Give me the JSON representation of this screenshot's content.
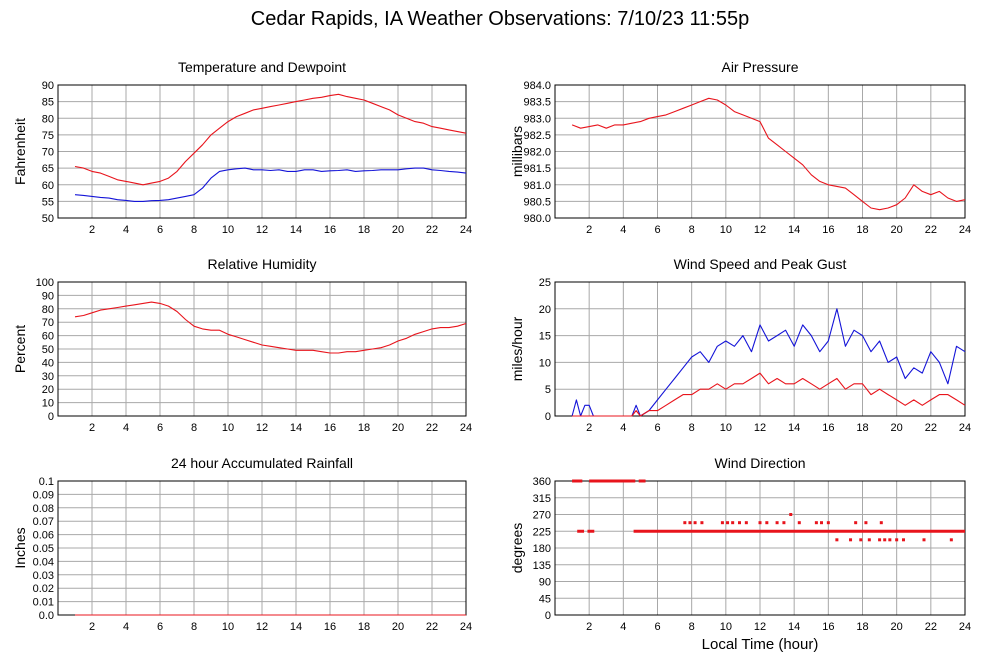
{
  "page": {
    "title": "Cedar Rapids, IA Weather Observations: 7/10/23 11:55p",
    "xlabel": "Local Time (hour)"
  },
  "colors": {
    "primary": "#e8141c",
    "secondary": "#1414d8",
    "grid": "#a8a8a8",
    "axis": "#000000"
  },
  "chart_data": [
    {
      "id": "temperature",
      "type": "line",
      "title": "Temperature and Dewpoint",
      "ylabel": "Fahrenheit",
      "xlim": [
        0,
        24
      ],
      "ylim": [
        50,
        90
      ],
      "xticks": [
        2,
        4,
        6,
        8,
        10,
        12,
        14,
        16,
        18,
        20,
        22,
        24
      ],
      "yticks": [
        50,
        55,
        60,
        65,
        70,
        75,
        80,
        85,
        90
      ],
      "grid": true,
      "series": [
        {
          "color": "#e8141c",
          "x": [
            1,
            1.5,
            2,
            2.5,
            3,
            3.5,
            4,
            4.5,
            5,
            5.5,
            6,
            6.5,
            7,
            7.5,
            8,
            8.5,
            9,
            9.5,
            10,
            10.5,
            11,
            11.5,
            12,
            12.5,
            13,
            13.5,
            14,
            14.5,
            15,
            15.5,
            16,
            16.5,
            17,
            17.5,
            18,
            18.5,
            19,
            19.5,
            20,
            20.5,
            21,
            21.5,
            22,
            22.5,
            23,
            23.5,
            24
          ],
          "y": [
            65.5,
            65,
            64,
            63.5,
            62.5,
            61.5,
            61,
            60.5,
            60,
            60.5,
            61,
            62,
            64,
            67,
            69.5,
            72,
            75,
            77,
            79,
            80.5,
            81.5,
            82.5,
            83,
            83.5,
            84,
            84.5,
            85,
            85.5,
            86,
            86.3,
            86.8,
            87.2,
            86.5,
            86,
            85.5,
            84.5,
            83.5,
            82.5,
            81,
            80,
            79,
            78.5,
            77.5,
            77,
            76.5,
            76,
            75.5
          ]
        },
        {
          "color": "#1414d8",
          "x": [
            1,
            1.5,
            2,
            2.5,
            3,
            3.5,
            4,
            4.5,
            5,
            5.5,
            6,
            6.5,
            7,
            7.5,
            8,
            8.5,
            9,
            9.5,
            10,
            10.5,
            11,
            11.5,
            12,
            12.5,
            13,
            13.5,
            14,
            14.5,
            15,
            15.5,
            16,
            16.5,
            17,
            17.5,
            18,
            18.5,
            19,
            19.5,
            20,
            20.5,
            21,
            21.5,
            22,
            22.5,
            23,
            23.5,
            24
          ],
          "y": [
            57,
            56.8,
            56.5,
            56.2,
            56,
            55.5,
            55.3,
            55,
            55,
            55.2,
            55.3,
            55.5,
            56,
            56.5,
            57,
            59,
            62,
            64,
            64.5,
            64.8,
            65,
            64.5,
            64.5,
            64.3,
            64.5,
            64,
            64,
            64.5,
            64.5,
            64,
            64.2,
            64.3,
            64.5,
            64,
            64.2,
            64.3,
            64.5,
            64.5,
            64.5,
            64.8,
            65,
            65,
            64.5,
            64.3,
            64,
            63.8,
            63.5
          ]
        }
      ]
    },
    {
      "id": "pressure",
      "type": "line",
      "title": "Air Pressure",
      "ylabel": "millibars",
      "xlim": [
        0,
        24
      ],
      "ylim": [
        980.0,
        984.0
      ],
      "xticks": [
        2,
        4,
        6,
        8,
        10,
        12,
        14,
        16,
        18,
        20,
        22,
        24
      ],
      "yticks": [
        980.0,
        980.5,
        981.0,
        981.5,
        982.0,
        982.5,
        983.0,
        983.5,
        984.0
      ],
      "grid": true,
      "series": [
        {
          "color": "#e8141c",
          "x": [
            1,
            1.5,
            2,
            2.5,
            3,
            3.5,
            4,
            4.5,
            5,
            5.5,
            6,
            6.5,
            7,
            7.5,
            8,
            8.5,
            9,
            9.5,
            10,
            10.5,
            11,
            11.5,
            12,
            12.5,
            13,
            13.5,
            14,
            14.5,
            15,
            15.5,
            16,
            16.5,
            17,
            17.5,
            18,
            18.5,
            19,
            19.5,
            20,
            20.5,
            21,
            21.5,
            22,
            22.5,
            23,
            23.5,
            24
          ],
          "y": [
            982.8,
            982.7,
            982.75,
            982.8,
            982.7,
            982.8,
            982.8,
            982.85,
            982.9,
            983.0,
            983.05,
            983.1,
            983.2,
            983.3,
            983.4,
            983.5,
            983.6,
            983.55,
            983.4,
            983.2,
            983.1,
            983.0,
            982.9,
            982.4,
            982.2,
            982.0,
            981.8,
            981.6,
            981.3,
            981.1,
            981.0,
            980.95,
            980.9,
            980.7,
            980.5,
            980.3,
            980.25,
            980.3,
            980.4,
            980.6,
            981.0,
            980.8,
            980.7,
            980.8,
            980.6,
            980.5,
            980.55
          ]
        }
      ]
    },
    {
      "id": "humidity",
      "type": "line",
      "title": "Relative Humidity",
      "ylabel": "Percent",
      "xlim": [
        0,
        24
      ],
      "ylim": [
        0,
        100
      ],
      "xticks": [
        2,
        4,
        6,
        8,
        10,
        12,
        14,
        16,
        18,
        20,
        22,
        24
      ],
      "yticks": [
        0,
        10,
        20,
        30,
        40,
        50,
        60,
        70,
        80,
        90,
        100
      ],
      "grid": true,
      "series": [
        {
          "color": "#e8141c",
          "x": [
            1,
            1.5,
            2,
            2.5,
            3,
            3.5,
            4,
            4.5,
            5,
            5.5,
            6,
            6.5,
            7,
            7.5,
            8,
            8.5,
            9,
            9.5,
            10,
            10.5,
            11,
            11.5,
            12,
            12.5,
            13,
            13.5,
            14,
            14.5,
            15,
            15.5,
            16,
            16.5,
            17,
            17.5,
            18,
            18.5,
            19,
            19.5,
            20,
            20.5,
            21,
            21.5,
            22,
            22.5,
            23,
            23.5,
            24
          ],
          "y": [
            74,
            75,
            77,
            79,
            80,
            81,
            82,
            83,
            84,
            85,
            84,
            82,
            78,
            72,
            67,
            65,
            64,
            64,
            61,
            59,
            57,
            55,
            53,
            52,
            51,
            50,
            49,
            49,
            49,
            48,
            47,
            47,
            48,
            48,
            49,
            50,
            51,
            53,
            56,
            58,
            61,
            63,
            65,
            66,
            66,
            67,
            69
          ]
        }
      ]
    },
    {
      "id": "wind-speed",
      "type": "line",
      "title": "Wind Speed and Peak Gust",
      "ylabel": "miles/hour",
      "xlim": [
        0,
        24
      ],
      "ylim": [
        0,
        25
      ],
      "xticks": [
        2,
        4,
        6,
        8,
        10,
        12,
        14,
        16,
        18,
        20,
        22,
        24
      ],
      "yticks": [
        0,
        5,
        10,
        15,
        20,
        25
      ],
      "grid": true,
      "series": [
        {
          "color": "#1414d8",
          "x": [
            1,
            1.25,
            1.5,
            1.75,
            2,
            2.25,
            2.5,
            3,
            4,
            4.5,
            4.75,
            5,
            5.5,
            6,
            6.5,
            7,
            7.5,
            8,
            8.5,
            9,
            9.5,
            10,
            10.5,
            11,
            11.5,
            12,
            12.5,
            13,
            13.5,
            14,
            14.5,
            15,
            15.5,
            16,
            16.5,
            17,
            17.5,
            18,
            18.5,
            19,
            19.5,
            20,
            20.5,
            21,
            21.5,
            22,
            22.5,
            23,
            23.5,
            24
          ],
          "y": [
            0,
            3,
            0,
            2,
            2,
            0,
            0,
            0,
            0,
            0,
            2,
            0,
            1,
            3,
            5,
            7,
            9,
            11,
            12,
            10,
            13,
            14,
            13,
            15,
            12,
            17,
            14,
            15,
            16,
            13,
            17,
            15,
            12,
            14,
            20,
            13,
            16,
            15,
            12,
            14,
            10,
            11,
            7,
            9,
            8,
            12,
            10,
            6,
            13,
            12
          ]
        },
        {
          "color": "#e8141c",
          "x": [
            1,
            2,
            3,
            4,
            4.5,
            4.75,
            5,
            5.5,
            6,
            6.5,
            7,
            7.5,
            8,
            8.5,
            9,
            9.5,
            10,
            10.5,
            11,
            11.5,
            12,
            12.5,
            13,
            13.5,
            14,
            14.5,
            15,
            15.5,
            16,
            16.5,
            17,
            17.5,
            18,
            18.5,
            19,
            19.5,
            20,
            20.5,
            21,
            21.5,
            22,
            22.5,
            23,
            23.5,
            24
          ],
          "y": [
            0,
            0,
            0,
            0,
            0,
            1,
            0,
            1,
            1,
            2,
            3,
            4,
            4,
            5,
            5,
            6,
            5,
            6,
            6,
            7,
            8,
            6,
            7,
            6,
            6,
            7,
            6,
            5,
            6,
            7,
            5,
            6,
            6,
            4,
            5,
            4,
            3,
            2,
            3,
            2,
            3,
            4,
            4,
            3,
            2
          ]
        }
      ]
    },
    {
      "id": "rainfall",
      "type": "line",
      "title": "24 hour Accumulated Rainfall",
      "ylabel": "Inches",
      "xlim": [
        0,
        24
      ],
      "ylim": [
        0,
        0.1
      ],
      "xticks": [
        2,
        4,
        6,
        8,
        10,
        12,
        14,
        16,
        18,
        20,
        22,
        24
      ],
      "yticks": [
        0.0,
        0.01,
        0.02,
        0.03,
        0.04,
        0.05,
        0.06,
        0.07,
        0.08,
        0.09,
        0.1
      ],
      "ytick_labels": [
        "0.0",
        "0.01",
        "0.02",
        "0.03",
        "0.04",
        "0.05",
        "0.06",
        "0.07",
        "0.08",
        "0.09",
        "0.1"
      ],
      "grid": true,
      "series": [
        {
          "color": "#e8141c",
          "x": [
            1,
            24
          ],
          "y": [
            0,
            0
          ]
        }
      ]
    },
    {
      "id": "wind-direction",
      "type": "scatter",
      "title": "Wind Direction",
      "ylabel": "degrees",
      "xlim": [
        0,
        24
      ],
      "ylim": [
        0,
        360
      ],
      "xticks": [
        2,
        4,
        6,
        8,
        10,
        12,
        14,
        16,
        18,
        20,
        22,
        24
      ],
      "yticks": [
        0,
        45,
        90,
        135,
        180,
        225,
        270,
        315,
        360
      ],
      "grid": true,
      "series": [
        {
          "color": "#e8141c",
          "segments": [
            {
              "x0": 1.0,
              "x1": 1.6,
              "y": 360
            },
            {
              "x0": 1.3,
              "x1": 1.7,
              "y": 225
            },
            {
              "x0": 1.9,
              "x1": 2.3,
              "y": 225
            },
            {
              "x0": 2.0,
              "x1": 4.7,
              "y": 360
            },
            {
              "x0": 4.9,
              "x1": 5.3,
              "y": 360
            },
            {
              "x0": 4.6,
              "x1": 24.0,
              "y": 225
            }
          ],
          "x": [
            7.6,
            7.9,
            8.2,
            8.6,
            9.8,
            10.1,
            10.4,
            10.8,
            11.2,
            12.0,
            12.4,
            13.0,
            13.4,
            13.8,
            14.3,
            15.3,
            15.6,
            16.0,
            16.5,
            17.3,
            17.6,
            17.9,
            18.2,
            18.4,
            19.0,
            19.1,
            19.3,
            19.6,
            20.0,
            20.4,
            21.6,
            23.2
          ],
          "y": [
            248,
            248,
            248,
            248,
            248,
            248,
            248,
            248,
            248,
            248,
            248,
            248,
            248,
            270,
            248,
            248,
            248,
            248,
            202,
            202,
            248,
            202,
            248,
            202,
            202,
            248,
            202,
            202,
            202,
            202,
            202,
            202
          ]
        }
      ]
    }
  ]
}
